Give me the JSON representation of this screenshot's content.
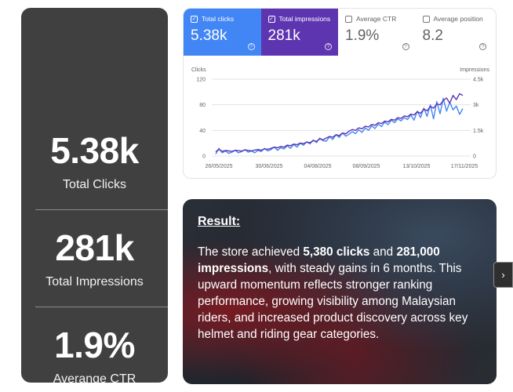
{
  "stats": [
    {
      "value": "5.38k",
      "label": "Total Clicks"
    },
    {
      "value": "281k",
      "label": "Total Impressions"
    },
    {
      "value": "1.9%",
      "label": "Averange CTR"
    }
  ],
  "gsc": {
    "tabs": [
      {
        "label": "Total clicks",
        "value": "5.38k",
        "checked": true,
        "color": "#4285f4"
      },
      {
        "label": "Total impressions",
        "value": "281k",
        "checked": true,
        "color": "#5e35b1"
      },
      {
        "label": "Average CTR",
        "value": "1.9%",
        "checked": false
      },
      {
        "label": "Average position",
        "value": "8.2",
        "checked": false
      }
    ],
    "help_glyph": "?"
  },
  "chart_data": {
    "type": "line",
    "left_axis_label": "Clicks",
    "right_axis_label": "Impressions",
    "left_ticks": [
      "120",
      "80",
      "40",
      "0"
    ],
    "right_ticks": [
      "4.5k",
      "3k",
      "1.5k",
      "0"
    ],
    "x_ticks": [
      "26/05/2025",
      "30/06/2025",
      "04/08/2025",
      "08/09/2025",
      "13/10/2025",
      "17/11/2025"
    ],
    "ylim_left": [
      0,
      120
    ],
    "ylim_right": [
      0,
      4500
    ],
    "series": [
      {
        "axis": "left",
        "color": "#4285f4",
        "values": [
          3,
          12,
          5,
          8,
          4,
          6,
          9,
          5,
          7,
          10,
          6,
          8,
          5,
          9,
          7,
          12,
          8,
          10,
          14,
          9,
          13,
          11,
          16,
          12,
          18,
          14,
          20,
          17,
          22,
          19,
          25,
          21,
          28,
          24,
          23,
          30,
          26,
          33,
          29,
          36,
          31,
          34,
          38,
          35,
          41,
          37,
          44,
          40,
          47,
          43,
          50,
          46,
          53,
          49,
          56,
          52,
          58,
          55,
          60,
          57,
          64,
          56,
          70,
          60,
          75,
          62,
          80,
          58,
          85,
          66,
          90,
          70,
          84,
          72,
          78,
          65,
          74
        ]
      },
      {
        "axis": "right",
        "color": "#5e35b1",
        "values": [
          250,
          380,
          280,
          320,
          300,
          270,
          340,
          310,
          290,
          360,
          330,
          300,
          350,
          380,
          340,
          420,
          390,
          450,
          520,
          480,
          560,
          520,
          640,
          600,
          700,
          660,
          760,
          720,
          820,
          780,
          900,
          860,
          1000,
          950,
          1050,
          1150,
          1100,
          1250,
          1200,
          1350,
          1300,
          1450,
          1550,
          1500,
          1650,
          1600,
          1750,
          1700,
          1850,
          1800,
          1950,
          1900,
          2050,
          2000,
          2150,
          2100,
          2250,
          2200,
          2350,
          2300,
          2450,
          2400,
          2600,
          2500,
          2750,
          2650,
          2900,
          2800,
          3050,
          3000,
          3250,
          3400,
          3100,
          3550,
          3300,
          3650,
          3550
        ]
      }
    ]
  },
  "result": {
    "title": "Result:",
    "part1": "The store achieved ",
    "clicks_bold": "5,380 clicks",
    "part2": " and ",
    "impressions_bold": "281,000 impressions",
    "part3": ", with steady gains in 6 months. This upward momentum reflects stronger ranking performance, growing visibility among Malaysian riders, and increased product discovery across key helmet and riding gear categories."
  },
  "carousel": {
    "next_glyph": "›"
  }
}
